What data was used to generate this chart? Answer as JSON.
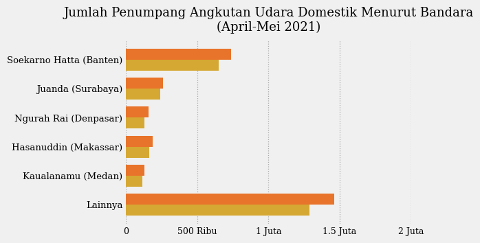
{
  "title": "Jumlah Penumpang Angkutan Udara Domestik Menurut Bandara\n(April-Mei 2021)",
  "categories": [
    "Lainnya",
    "Kaualanamu (Medan)",
    "Hasanuddin (Makassar)",
    "Ngurah Rai (Denpasar)",
    "Juanda (Surabaya)",
    "Soekarno Hatta (Banten)"
  ],
  "april_values": [
    1460000,
    130000,
    190000,
    160000,
    260000,
    740000
  ],
  "mei_values": [
    1290000,
    115000,
    165000,
    130000,
    240000,
    650000
  ],
  "color_april": "#E8732A",
  "color_mei": "#D4A832",
  "background_color": "#F0F0F0",
  "xlim": [
    0,
    2000000
  ],
  "xtick_positions": [
    0,
    500000,
    1000000,
    1500000,
    2000000
  ],
  "xtick_labels": [
    "0",
    "500 Ribu",
    "1 Juta",
    "1.5 Juta",
    "2 Juta"
  ],
  "title_fontsize": 13,
  "label_fontsize": 9.5,
  "tick_fontsize": 9,
  "bar_height": 0.38
}
